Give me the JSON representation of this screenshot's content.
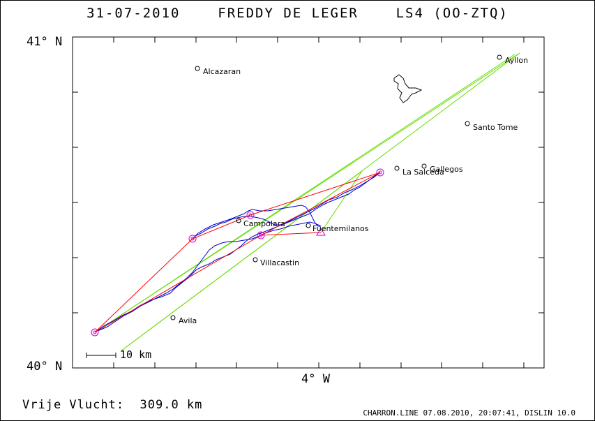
{
  "header": {
    "title": "31-07-2010    FREDDY DE LEGER    LS4 (OO-ZTQ)"
  },
  "axes": {
    "lat_top_label": "41° N",
    "lat_bottom_label": "40° N",
    "lon_label": "4° W"
  },
  "scale_bar": {
    "label": "10 km"
  },
  "summary": {
    "distance_label": "Vrije Vlucht:  309.0 km"
  },
  "footer": {
    "credit": "CHARRON.LINE 07.08.2010, 20:07:41, DISLIN 10.0"
  },
  "colors": {
    "track": "#0000cc",
    "task_line": "#ff0000",
    "sector_line": "#66dd00",
    "turnpoint": "#cc00cc",
    "town": "#000000"
  },
  "towns": [
    {
      "name": "Ayllon"
    },
    {
      "name": "Alcazaran"
    },
    {
      "name": "Santo Tome"
    },
    {
      "name": "Gallegos"
    },
    {
      "name": "La Salceda"
    },
    {
      "name": "Campolara"
    },
    {
      "name": "Fuentemilanos"
    },
    {
      "name": "Villacastin"
    },
    {
      "name": "Avila"
    }
  ]
}
